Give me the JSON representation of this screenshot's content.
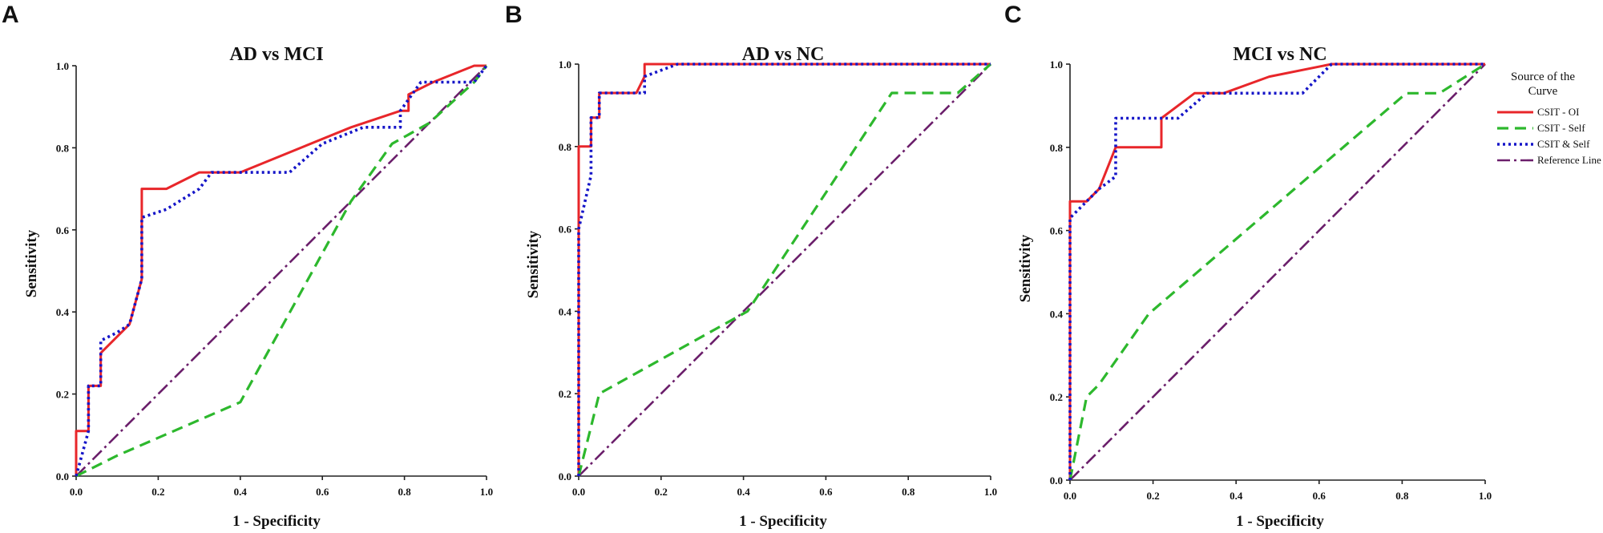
{
  "legend": {
    "title_lines": [
      "Source of the",
      "Curve"
    ],
    "entries": [
      {
        "label": "CSIT - OI",
        "color": "#e8262a",
        "dash": "solid"
      },
      {
        "label": "CSIT - Self",
        "color": "#2db82d",
        "dash": "dash"
      },
      {
        "label": "CSIT & Self",
        "color": "#1515c8",
        "dash": "dot"
      },
      {
        "label": "Reference Line",
        "color": "#6b1f6b",
        "dash": "dashdot"
      }
    ]
  },
  "chart_data": [
    {
      "panel": "A",
      "type": "line",
      "title": "AD vs MCI",
      "xlabel": "1 - Specificity",
      "ylabel": "Sensitivity",
      "xlim": [
        0,
        1
      ],
      "ylim": [
        0,
        1
      ],
      "xticks": [
        "0.0",
        "0.2",
        "0.4",
        "0.6",
        "0.8",
        "1.0"
      ],
      "yticks": [
        "0.0",
        "0.2",
        "0.4",
        "0.6",
        "0.8",
        "1.0"
      ],
      "series": [
        {
          "name": "CSIT - OI",
          "points": [
            [
              0,
              0
            ],
            [
              0,
              0.11
            ],
            [
              0.03,
              0.11
            ],
            [
              0.03,
              0.22
            ],
            [
              0.06,
              0.22
            ],
            [
              0.06,
              0.3
            ],
            [
              0.13,
              0.37
            ],
            [
              0.16,
              0.48
            ],
            [
              0.16,
              0.7
            ],
            [
              0.22,
              0.7
            ],
            [
              0.3,
              0.74
            ],
            [
              0.4,
              0.74
            ],
            [
              0.67,
              0.85
            ],
            [
              0.79,
              0.89
            ],
            [
              0.81,
              0.89
            ],
            [
              0.81,
              0.93
            ],
            [
              0.87,
              0.96
            ],
            [
              0.97,
              1.0
            ],
            [
              1,
              1
            ]
          ]
        },
        {
          "name": "CSIT - Self",
          "points": [
            [
              0,
              0
            ],
            [
              0.1,
              0.05
            ],
            [
              0.4,
              0.18
            ],
            [
              0.67,
              0.67
            ],
            [
              0.77,
              0.81
            ],
            [
              0.86,
              0.86
            ],
            [
              0.97,
              0.96
            ],
            [
              1,
              1
            ]
          ]
        },
        {
          "name": "CSIT & Self",
          "points": [
            [
              0,
              0
            ],
            [
              0.03,
              0.11
            ],
            [
              0.03,
              0.22
            ],
            [
              0.06,
              0.22
            ],
            [
              0.06,
              0.33
            ],
            [
              0.1,
              0.35
            ],
            [
              0.13,
              0.37
            ],
            [
              0.16,
              0.48
            ],
            [
              0.16,
              0.63
            ],
            [
              0.22,
              0.65
            ],
            [
              0.3,
              0.7
            ],
            [
              0.33,
              0.74
            ],
            [
              0.52,
              0.74
            ],
            [
              0.6,
              0.81
            ],
            [
              0.7,
              0.85
            ],
            [
              0.79,
              0.85
            ],
            [
              0.79,
              0.89
            ],
            [
              0.84,
              0.96
            ],
            [
              0.97,
              0.96
            ],
            [
              1,
              1
            ]
          ]
        },
        {
          "name": "Reference Line",
          "points": [
            [
              0,
              0
            ],
            [
              1,
              1
            ]
          ]
        }
      ]
    },
    {
      "panel": "B",
      "type": "line",
      "title": "AD vs NC",
      "xlabel": "1 - Specificity",
      "ylabel": "Sensitivity",
      "xlim": [
        0,
        1
      ],
      "ylim": [
        0,
        1
      ],
      "xticks": [
        "0.0",
        "0.2",
        "0.4",
        "0.6",
        "0.8",
        "1.0"
      ],
      "yticks": [
        "0.0",
        "0.2",
        "0.4",
        "0.6",
        "0.8",
        "1.0"
      ],
      "series": [
        {
          "name": "CSIT - OI",
          "points": [
            [
              0,
              0
            ],
            [
              0,
              0.8
            ],
            [
              0.03,
              0.8
            ],
            [
              0.03,
              0.87
            ],
            [
              0.05,
              0.87
            ],
            [
              0.05,
              0.93
            ],
            [
              0.14,
              0.93
            ],
            [
              0.16,
              0.97
            ],
            [
              0.16,
              1.0
            ],
            [
              1,
              1
            ]
          ]
        },
        {
          "name": "CSIT - Self",
          "points": [
            [
              0,
              0
            ],
            [
              0.05,
              0.2
            ],
            [
              0.41,
              0.4
            ],
            [
              0.76,
              0.93
            ],
            [
              0.92,
              0.93
            ],
            [
              1,
              1
            ]
          ]
        },
        {
          "name": "CSIT & Self",
          "points": [
            [
              0,
              0
            ],
            [
              0,
              0.6
            ],
            [
              0.03,
              0.73
            ],
            [
              0.03,
              0.87
            ],
            [
              0.05,
              0.87
            ],
            [
              0.05,
              0.93
            ],
            [
              0.16,
              0.93
            ],
            [
              0.16,
              0.97
            ],
            [
              0.24,
              1.0
            ],
            [
              1,
              1
            ]
          ]
        },
        {
          "name": "Reference Line",
          "points": [
            [
              0,
              0
            ],
            [
              1,
              1
            ]
          ]
        }
      ]
    },
    {
      "panel": "C",
      "type": "line",
      "title": "MCI vs NC",
      "xlabel": "1 - Specificity",
      "ylabel": "Sensitivity",
      "xlim": [
        0,
        1
      ],
      "ylim": [
        0,
        1
      ],
      "xticks": [
        "0.0",
        "0.2",
        "0.4",
        "0.6",
        "0.8",
        "1.0"
      ],
      "yticks": [
        "0.0",
        "0.2",
        "0.4",
        "0.6",
        "0.8",
        "1.0"
      ],
      "series": [
        {
          "name": "CSIT - OI",
          "points": [
            [
              0,
              0
            ],
            [
              0,
              0.67
            ],
            [
              0.04,
              0.67
            ],
            [
              0.07,
              0.7
            ],
            [
              0.11,
              0.8
            ],
            [
              0.22,
              0.8
            ],
            [
              0.22,
              0.87
            ],
            [
              0.3,
              0.93
            ],
            [
              0.37,
              0.93
            ],
            [
              0.48,
              0.97
            ],
            [
              0.63,
              1.0
            ],
            [
              1,
              1
            ]
          ]
        },
        {
          "name": "CSIT - Self",
          "points": [
            [
              0,
              0
            ],
            [
              0.04,
              0.2
            ],
            [
              0.07,
              0.23
            ],
            [
              0.19,
              0.4
            ],
            [
              0.81,
              0.93
            ],
            [
              0.89,
              0.93
            ],
            [
              1,
              1
            ]
          ]
        },
        {
          "name": "CSIT & Self",
          "points": [
            [
              0,
              0
            ],
            [
              0,
              0.63
            ],
            [
              0.07,
              0.7
            ],
            [
              0.11,
              0.73
            ],
            [
              0.11,
              0.87
            ],
            [
              0.26,
              0.87
            ],
            [
              0.33,
              0.93
            ],
            [
              0.56,
              0.93
            ],
            [
              0.63,
              1.0
            ],
            [
              1,
              1
            ]
          ]
        },
        {
          "name": "Reference Line",
          "points": [
            [
              0,
              0
            ],
            [
              1,
              1
            ]
          ]
        }
      ]
    }
  ]
}
